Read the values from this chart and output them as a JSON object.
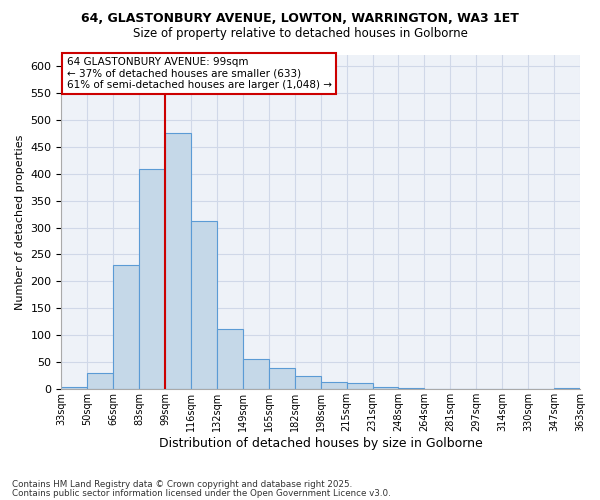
{
  "title1": "64, GLASTONBURY AVENUE, LOWTON, WARRINGTON, WA3 1ET",
  "title2": "Size of property relative to detached houses in Golborne",
  "xlabel": "Distribution of detached houses by size in Golborne",
  "ylabel": "Number of detached properties",
  "annotation_title": "64 GLASTONBURY AVENUE: 99sqm",
  "annotation_line1": "← 37% of detached houses are smaller (633)",
  "annotation_line2": "61% of semi-detached houses are larger (1,048) →",
  "footer1": "Contains HM Land Registry data © Crown copyright and database right 2025.",
  "footer2": "Contains public sector information licensed under the Open Government Licence v3.0.",
  "bar_color": "#c5d8e8",
  "bar_edge_color": "#5b9bd5",
  "redline_color": "#cc0000",
  "annotation_box_edge": "#cc0000",
  "grid_color": "#d0d8e8",
  "bg_color": "#eef2f8",
  "bin_labels": [
    "33sqm",
    "50sqm",
    "66sqm",
    "83sqm",
    "99sqm",
    "116sqm",
    "132sqm",
    "149sqm",
    "165sqm",
    "182sqm",
    "198sqm",
    "215sqm",
    "231sqm",
    "248sqm",
    "264sqm",
    "281sqm",
    "297sqm",
    "314sqm",
    "330sqm",
    "347sqm",
    "363sqm"
  ],
  "counts": [
    5,
    30,
    230,
    408,
    475,
    312,
    112,
    57,
    40,
    25,
    13,
    11,
    5,
    2,
    1,
    0,
    0,
    0,
    0,
    2
  ],
  "redline_bin_index": 4,
  "ylim": [
    0,
    620
  ],
  "yticks": [
    0,
    50,
    100,
    150,
    200,
    250,
    300,
    350,
    400,
    450,
    500,
    550,
    600
  ]
}
